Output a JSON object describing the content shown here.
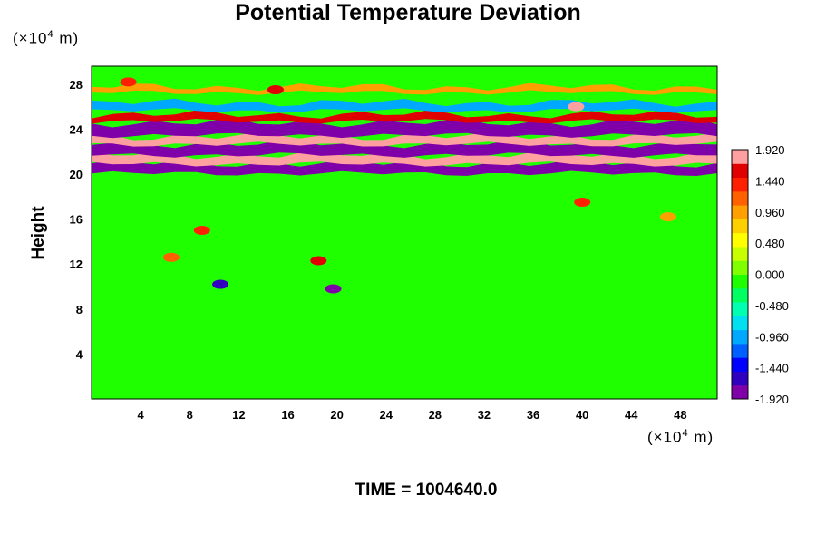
{
  "chart_data": {
    "type": "heatmap",
    "title": "Potential Temperature Deviation",
    "ylabel": "Height",
    "y_unit_prefix": "(×10",
    "y_unit_exp": "4",
    "y_unit_suffix": " m)",
    "x_unit_prefix": "(×10",
    "x_unit_exp": "4",
    "x_unit_suffix": " m)",
    "xlim": [
      0,
      51
    ],
    "ylim": [
      0,
      29.6
    ],
    "x_ticks": [
      "4",
      "8",
      "12",
      "16",
      "20",
      "24",
      "28",
      "32",
      "36",
      "40",
      "44",
      "48"
    ],
    "x_tick_values": [
      4,
      8,
      12,
      16,
      20,
      24,
      28,
      32,
      36,
      40,
      44,
      48
    ],
    "y_ticks": [
      "4",
      "8",
      "12",
      "16",
      "20",
      "24",
      "28"
    ],
    "y_tick_values": [
      4,
      8,
      12,
      16,
      20,
      24,
      28
    ],
    "colorbar": {
      "range": [
        -1.92,
        1.92
      ],
      "labels": [
        "1.920",
        "1.440",
        "0.960",
        "0.480",
        "0.000",
        "-0.480",
        "-0.960",
        "-1.440",
        "-1.920"
      ],
      "label_values": [
        1.92,
        1.44,
        0.96,
        0.48,
        0.0,
        -0.48,
        -0.96,
        -1.44,
        -1.92
      ],
      "colors": [
        "#7f00a8",
        "#3000c0",
        "#0000ff",
        "#0060ff",
        "#00a8ff",
        "#00e0f0",
        "#00ffb0",
        "#00ff60",
        "#20ff00",
        "#7fff00",
        "#c8ff00",
        "#ffff00",
        "#ffd000",
        "#ffa000",
        "#ff6000",
        "#ff2000",
        "#e00000",
        "#ffa0a0"
      ]
    },
    "background_value": -0.1,
    "bands": [
      {
        "y_center": 20.5,
        "thickness": 0.9,
        "value": -1.92
      },
      {
        "y_center": 21.3,
        "thickness": 0.8,
        "value": 1.92
      },
      {
        "y_center": 22.2,
        "thickness": 1.0,
        "value": -1.92
      },
      {
        "y_center": 23.0,
        "thickness": 0.7,
        "value": 1.92
      },
      {
        "y_center": 24.0,
        "thickness": 1.1,
        "value": -1.8
      },
      {
        "y_center": 25.0,
        "thickness": 0.6,
        "value": 1.5
      },
      {
        "y_center": 26.0,
        "thickness": 0.7,
        "value": -1.0
      },
      {
        "y_center": 27.5,
        "thickness": 0.5,
        "value": 1.0
      }
    ],
    "blobs": [
      {
        "x": 9.0,
        "y": 15.0,
        "value": 1.4
      },
      {
        "x": 18.5,
        "y": 12.3,
        "value": 1.6
      },
      {
        "x": 6.5,
        "y": 12.6,
        "value": 1.2
      },
      {
        "x": 10.5,
        "y": 10.2,
        "value": -1.6
      },
      {
        "x": 19.7,
        "y": 9.8,
        "value": -1.8
      },
      {
        "x": 40.0,
        "y": 17.5,
        "value": 1.3
      },
      {
        "x": 47.0,
        "y": 16.2,
        "value": 0.9
      },
      {
        "x": 3.0,
        "y": 28.2,
        "value": 1.4
      },
      {
        "x": 15.0,
        "y": 27.5,
        "value": 1.7
      },
      {
        "x": 39.5,
        "y": 26.0,
        "value": 1.8
      }
    ]
  },
  "footer": {
    "time_label": "TIME = 1004640.0"
  }
}
